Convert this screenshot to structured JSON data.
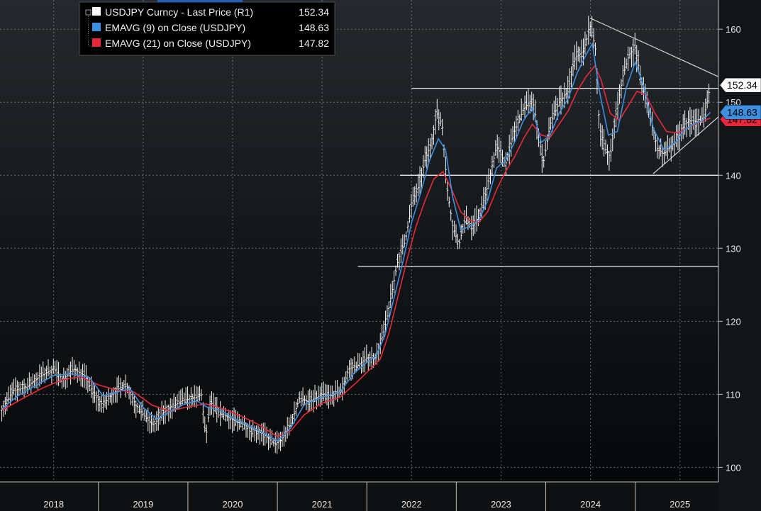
{
  "chart_data": {
    "type": "line",
    "ylim": [
      98,
      164
    ],
    "xlim": [
      2017.9,
      2025.93
    ],
    "grid": true,
    "legend_position": "top-left",
    "y_ticks": [
      100,
      110,
      120,
      130,
      140,
      150,
      160
    ],
    "x_labels": [
      {
        "label": "2018",
        "pos": 2018.5
      },
      {
        "label": "2019",
        "pos": 2019.5
      },
      {
        "label": "2020",
        "pos": 2020.5
      },
      {
        "label": "2021",
        "pos": 2021.5
      },
      {
        "label": "2022",
        "pos": 2022.5
      },
      {
        "label": "2023",
        "pos": 2023.5
      },
      {
        "label": "2024",
        "pos": 2024.5
      },
      {
        "label": "2025",
        "pos": 2025.5
      }
    ],
    "year_boundaries": [
      2019,
      2020,
      2021,
      2022,
      2023,
      2024,
      2025
    ],
    "legend": [
      {
        "label": "USDJPY Curncy - Last Price (R1)",
        "value": "152.34",
        "color": "#ffffff"
      },
      {
        "label": "EMAVG (9)  on Close (USDJPY)",
        "value": "148.63",
        "color": "#3d8fe0"
      },
      {
        "label": "EMAVG (21)  on Close (USDJPY)",
        "value": "147.82",
        "color": "#e8283a"
      }
    ],
    "last_values": [
      {
        "value": 152.34,
        "label": "152.34",
        "bg": "#ffffff",
        "fg": "#000000"
      },
      {
        "value": 148.63,
        "label": "148.63",
        "bg": "#3d8fe0",
        "fg": "#000000"
      },
      {
        "value": 147.82,
        "label": "147.82",
        "bg": "#e8283a",
        "fg": "#000000"
      }
    ],
    "price_series": {
      "name": "USDJPY Curncy - Last Price (R1)",
      "color": "#ffffff",
      "points": [
        [
          2017.92,
          108.0
        ],
        [
          2018.05,
          110.5
        ],
        [
          2018.2,
          111.0
        ],
        [
          2018.35,
          112.5
        ],
        [
          2018.5,
          113.5
        ],
        [
          2018.6,
          112.0
        ],
        [
          2018.72,
          113.5
        ],
        [
          2018.85,
          112.5
        ],
        [
          2018.95,
          110.0
        ],
        [
          2019.05,
          108.5
        ],
        [
          2019.15,
          110.0
        ],
        [
          2019.3,
          111.5
        ],
        [
          2019.42,
          108.5
        ],
        [
          2019.55,
          106.5
        ],
        [
          2019.62,
          105.8
        ],
        [
          2019.72,
          107.5
        ],
        [
          2019.85,
          108.5
        ],
        [
          2019.95,
          109.2
        ],
        [
          2020.08,
          109.5
        ],
        [
          2020.15,
          110.0
        ],
        [
          2020.2,
          104.0
        ],
        [
          2020.25,
          109.0
        ],
        [
          2020.35,
          107.5
        ],
        [
          2020.5,
          106.5
        ],
        [
          2020.6,
          106.0
        ],
        [
          2020.72,
          105.2
        ],
        [
          2020.85,
          104.5
        ],
        [
          2020.97,
          103.2
        ],
        [
          2021.05,
          103.8
        ],
        [
          2021.15,
          106.0
        ],
        [
          2021.25,
          109.5
        ],
        [
          2021.35,
          109.0
        ],
        [
          2021.5,
          110.0
        ],
        [
          2021.6,
          109.8
        ],
        [
          2021.72,
          110.5
        ],
        [
          2021.8,
          113.5
        ],
        [
          2021.9,
          114.0
        ],
        [
          2022.0,
          115.0
        ],
        [
          2022.1,
          115.0
        ],
        [
          2022.2,
          119.0
        ],
        [
          2022.28,
          124.0
        ],
        [
          2022.35,
          128.5
        ],
        [
          2022.43,
          131.0
        ],
        [
          2022.5,
          136.0
        ],
        [
          2022.58,
          138.5
        ],
        [
          2022.65,
          142.0
        ],
        [
          2022.72,
          144.5
        ],
        [
          2022.78,
          148.5
        ],
        [
          2022.84,
          147.0
        ],
        [
          2022.9,
          138.0
        ],
        [
          2022.96,
          133.0
        ],
        [
          2023.03,
          130.5
        ],
        [
          2023.1,
          134.0
        ],
        [
          2023.18,
          133.0
        ],
        [
          2023.26,
          134.5
        ],
        [
          2023.35,
          138.5
        ],
        [
          2023.45,
          144.0
        ],
        [
          2023.55,
          141.5
        ],
        [
          2023.65,
          146.0
        ],
        [
          2023.75,
          149.0
        ],
        [
          2023.85,
          150.5
        ],
        [
          2023.9,
          147.0
        ],
        [
          2023.97,
          141.5
        ],
        [
          2024.05,
          147.0
        ],
        [
          2024.15,
          150.0
        ],
        [
          2024.25,
          151.5
        ],
        [
          2024.32,
          156.0
        ],
        [
          2024.42,
          157.0
        ],
        [
          2024.5,
          160.5
        ],
        [
          2024.56,
          157.0
        ],
        [
          2024.6,
          146.5
        ],
        [
          2024.67,
          143.5
        ],
        [
          2024.72,
          142.5
        ],
        [
          2024.78,
          148.0
        ],
        [
          2024.86,
          153.5
        ],
        [
          2024.93,
          156.5
        ],
        [
          2025.0,
          157.5
        ],
        [
          2025.08,
          152.0
        ],
        [
          2025.15,
          149.0
        ],
        [
          2025.25,
          143.5
        ],
        [
          2025.33,
          143.0
        ],
        [
          2025.4,
          144.0
        ],
        [
          2025.48,
          145.0
        ],
        [
          2025.55,
          147.0
        ],
        [
          2025.62,
          147.5
        ],
        [
          2025.7,
          147.3
        ],
        [
          2025.77,
          148.0
        ],
        [
          2025.84,
          152.34
        ]
      ]
    },
    "ema9_series": {
      "name": "EMAVG (9)  on Close (USDJPY)",
      "color": "#3d8fe0",
      "points": [
        [
          2017.92,
          108.0
        ],
        [
          2018.1,
          109.8
        ],
        [
          2018.3,
          111.2
        ],
        [
          2018.5,
          112.6
        ],
        [
          2018.7,
          112.8
        ],
        [
          2018.9,
          112.3
        ],
        [
          2019.05,
          109.8
        ],
        [
          2019.2,
          110.3
        ],
        [
          2019.35,
          110.8
        ],
        [
          2019.5,
          108.2
        ],
        [
          2019.65,
          106.6
        ],
        [
          2019.8,
          107.6
        ],
        [
          2019.95,
          108.6
        ],
        [
          2020.1,
          109.1
        ],
        [
          2020.22,
          108.2
        ],
        [
          2020.35,
          107.9
        ],
        [
          2020.5,
          106.8
        ],
        [
          2020.7,
          105.6
        ],
        [
          2020.9,
          104.3
        ],
        [
          2021.0,
          103.6
        ],
        [
          2021.15,
          105.4
        ],
        [
          2021.3,
          108.6
        ],
        [
          2021.5,
          109.6
        ],
        [
          2021.7,
          110.3
        ],
        [
          2021.85,
          112.8
        ],
        [
          2022.0,
          114.4
        ],
        [
          2022.1,
          115.2
        ],
        [
          2022.2,
          118.0
        ],
        [
          2022.3,
          123.0
        ],
        [
          2022.4,
          128.0
        ],
        [
          2022.5,
          133.5
        ],
        [
          2022.6,
          137.5
        ],
        [
          2022.7,
          142.0
        ],
        [
          2022.8,
          145.0
        ],
        [
          2022.88,
          143.5
        ],
        [
          2022.96,
          137.0
        ],
        [
          2023.05,
          132.5
        ],
        [
          2023.15,
          133.0
        ],
        [
          2023.25,
          133.8
        ],
        [
          2023.35,
          136.5
        ],
        [
          2023.45,
          141.0
        ],
        [
          2023.55,
          142.0
        ],
        [
          2023.65,
          144.5
        ],
        [
          2023.75,
          147.5
        ],
        [
          2023.85,
          149.2
        ],
        [
          2023.95,
          144.5
        ],
        [
          2024.05,
          145.5
        ],
        [
          2024.15,
          148.5
        ],
        [
          2024.25,
          150.5
        ],
        [
          2024.35,
          154.0
        ],
        [
          2024.45,
          156.5
        ],
        [
          2024.52,
          158.0
        ],
        [
          2024.6,
          151.5
        ],
        [
          2024.7,
          145.5
        ],
        [
          2024.8,
          146.0
        ],
        [
          2024.9,
          152.0
        ],
        [
          2025.0,
          155.5
        ],
        [
          2025.1,
          152.0
        ],
        [
          2025.2,
          146.5
        ],
        [
          2025.32,
          143.5
        ],
        [
          2025.45,
          144.5
        ],
        [
          2025.55,
          146.2
        ],
        [
          2025.65,
          147.0
        ],
        [
          2025.75,
          147.5
        ],
        [
          2025.84,
          148.63
        ]
      ]
    },
    "ema21_series": {
      "name": "EMAVG (21)  on Close (USDJPY)",
      "color": "#e8283a",
      "points": [
        [
          2017.92,
          107.8
        ],
        [
          2018.15,
          109.4
        ],
        [
          2018.4,
          111.0
        ],
        [
          2018.6,
          112.0
        ],
        [
          2018.8,
          112.4
        ],
        [
          2019.0,
          111.3
        ],
        [
          2019.2,
          110.6
        ],
        [
          2019.4,
          110.3
        ],
        [
          2019.6,
          108.5
        ],
        [
          2019.8,
          107.7
        ],
        [
          2020.0,
          108.3
        ],
        [
          2020.2,
          108.7
        ],
        [
          2020.4,
          108.0
        ],
        [
          2020.6,
          107.0
        ],
        [
          2020.8,
          105.8
        ],
        [
          2021.0,
          104.2
        ],
        [
          2021.15,
          105.0
        ],
        [
          2021.3,
          107.2
        ],
        [
          2021.5,
          108.8
        ],
        [
          2021.7,
          109.6
        ],
        [
          2021.9,
          111.8
        ],
        [
          2022.05,
          113.6
        ],
        [
          2022.15,
          114.8
        ],
        [
          2022.25,
          118.5
        ],
        [
          2022.35,
          123.5
        ],
        [
          2022.45,
          128.5
        ],
        [
          2022.55,
          133.0
        ],
        [
          2022.65,
          136.5
        ],
        [
          2022.75,
          139.5
        ],
        [
          2022.85,
          140.5
        ],
        [
          2022.95,
          138.0
        ],
        [
          2023.05,
          135.0
        ],
        [
          2023.15,
          133.8
        ],
        [
          2023.25,
          133.5
        ],
        [
          2023.35,
          135.0
        ],
        [
          2023.45,
          138.0
        ],
        [
          2023.55,
          140.5
        ],
        [
          2023.65,
          142.5
        ],
        [
          2023.75,
          145.0
        ],
        [
          2023.85,
          147.0
        ],
        [
          2023.95,
          145.5
        ],
        [
          2024.05,
          145.2
        ],
        [
          2024.15,
          147.0
        ],
        [
          2024.25,
          148.8
        ],
        [
          2024.35,
          151.5
        ],
        [
          2024.45,
          153.5
        ],
        [
          2024.55,
          155.0
        ],
        [
          2024.62,
          153.0
        ],
        [
          2024.72,
          148.5
        ],
        [
          2024.82,
          147.5
        ],
        [
          2024.92,
          149.5
        ],
        [
          2025.02,
          151.5
        ],
        [
          2025.12,
          151.0
        ],
        [
          2025.22,
          148.5
        ],
        [
          2025.35,
          146.0
        ],
        [
          2025.48,
          145.8
        ],
        [
          2025.6,
          146.6
        ],
        [
          2025.72,
          147.3
        ],
        [
          2025.84,
          147.82
        ]
      ]
    },
    "support_lines": [
      {
        "y": 127.5,
        "x_start": 2021.9,
        "x_end": 2025.93
      },
      {
        "y": 140.0,
        "x_start": 2022.37,
        "x_end": 2025.93
      },
      {
        "y": 151.9,
        "x_start": 2022.5,
        "x_end": 2025.93
      }
    ],
    "trend_lines": [
      {
        "from": [
          2024.5,
          161.5
        ],
        "to": [
          2025.93,
          153.5
        ]
      },
      {
        "from": [
          2025.2,
          140.2
        ],
        "to": [
          2025.93,
          148.0
        ]
      }
    ]
  }
}
